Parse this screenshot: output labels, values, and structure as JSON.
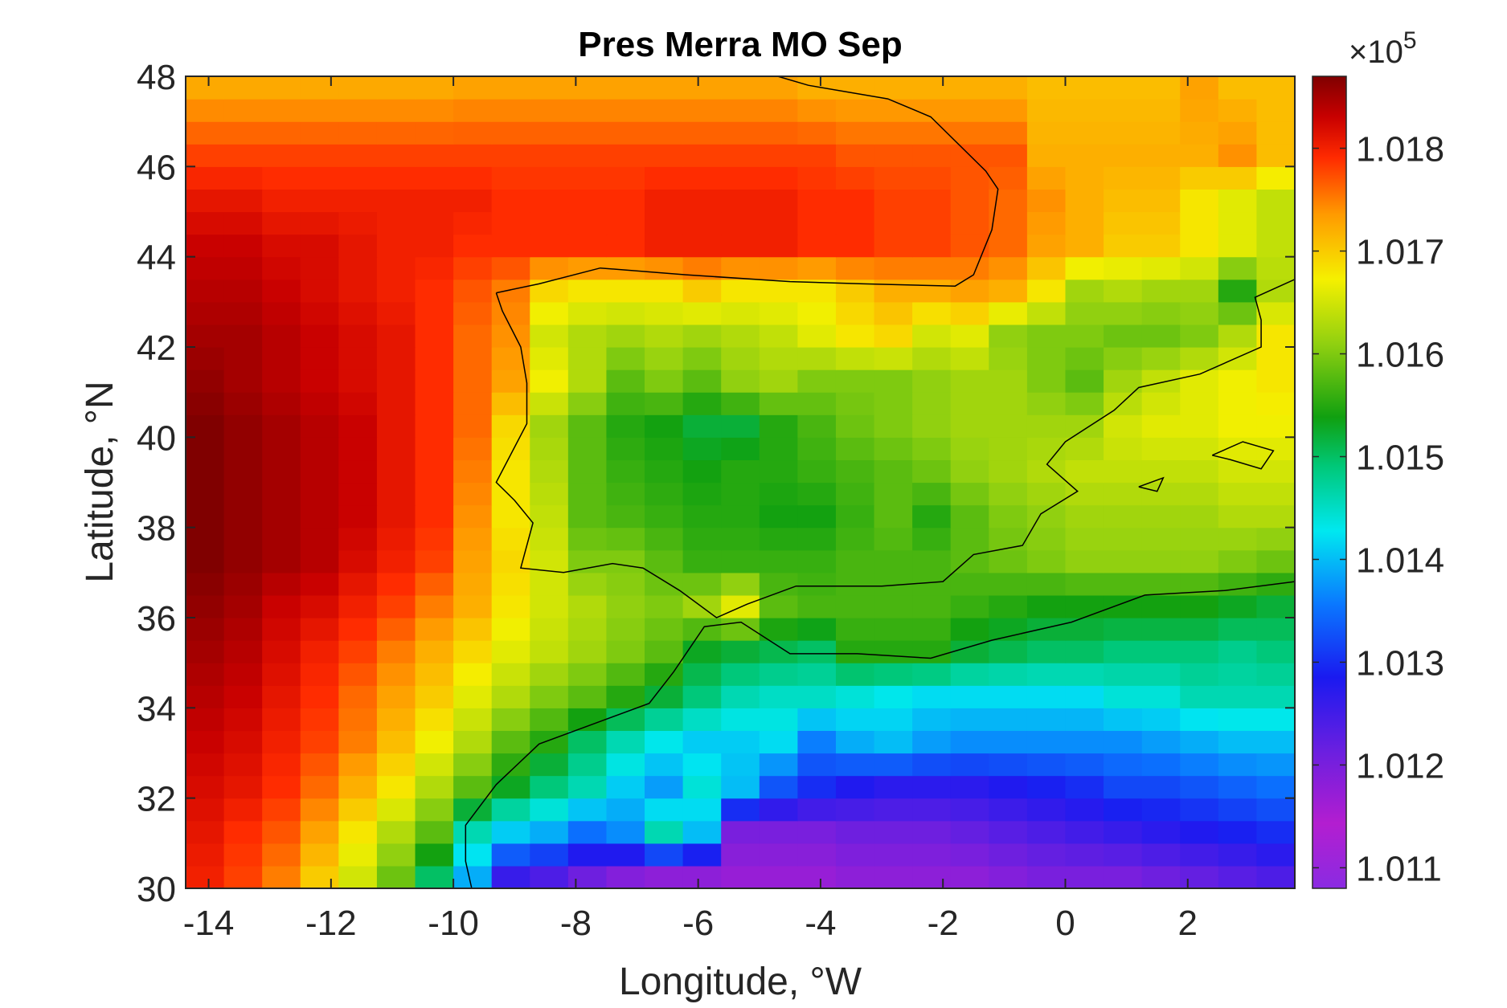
{
  "chart_data": {
    "type": "heatmap",
    "title": "Pres Merra MO Sep",
    "xlabel": "Longitude, °W",
    "ylabel": "Latitude, °N",
    "xlim": [
      -14.375,
      3.75
    ],
    "ylim": [
      30,
      48
    ],
    "x_ticks": [
      -14,
      -12,
      -10,
      -8,
      -6,
      -4,
      -2,
      0,
      2
    ],
    "x_tick_labels": [
      "-14",
      "-12",
      "-10",
      "-8",
      "-6",
      "-4",
      "-2",
      "0",
      "2"
    ],
    "y_ticks": [
      30,
      32,
      34,
      36,
      38,
      40,
      42,
      44,
      46,
      48
    ],
    "y_tick_labels": [
      "30",
      "32",
      "34",
      "36",
      "38",
      "40",
      "42",
      "44",
      "46",
      "48"
    ],
    "colorbar": {
      "multiplier_label": "×10",
      "multiplier_exponent": "5",
      "range": [
        1.0108,
        1.0187
      ],
      "ticks": [
        1.011,
        1.012,
        1.013,
        1.014,
        1.015,
        1.016,
        1.017,
        1.018
      ],
      "tick_labels": [
        "1.011",
        "1.012",
        "1.013",
        "1.014",
        "1.015",
        "1.016",
        "1.017",
        "1.018"
      ]
    },
    "colormap_stops": [
      [
        0.0,
        "#8a2be2"
      ],
      [
        0.08,
        "#b31ed0"
      ],
      [
        0.17,
        "#6a1fe0"
      ],
      [
        0.26,
        "#1a1af0"
      ],
      [
        0.35,
        "#0a78ff"
      ],
      [
        0.44,
        "#00e8f0"
      ],
      [
        0.52,
        "#00c878"
      ],
      [
        0.58,
        "#10a010"
      ],
      [
        0.67,
        "#90d010"
      ],
      [
        0.75,
        "#f5f000"
      ],
      [
        0.83,
        "#ff9a00"
      ],
      [
        0.9,
        "#ff2a00"
      ],
      [
        0.95,
        "#c80000"
      ],
      [
        1.0,
        "#800000"
      ]
    ],
    "grid": false,
    "description_value_units": "Pa / 1e5",
    "lon_centers": [
      -14.0625,
      -13.4375,
      -12.8125,
      -12.1875,
      -11.5625,
      -10.9375,
      -10.3125,
      -9.6875,
      -9.0625,
      -8.4375,
      -7.8125,
      -7.1875,
      -6.5625,
      -5.9375,
      -5.3125,
      -4.6875,
      -4.0625,
      -3.4375,
      -2.8125,
      -2.1875,
      -1.5625,
      -0.9375,
      -0.3125,
      0.3125,
      0.9375,
      1.5625,
      2.1875,
      2.8125,
      3.4375
    ],
    "lat_centers": [
      30.25,
      30.75,
      31.25,
      31.75,
      32.25,
      32.75,
      33.25,
      33.75,
      34.25,
      34.75,
      35.25,
      35.75,
      36.25,
      36.75,
      37.25,
      37.75,
      38.25,
      38.75,
      39.25,
      39.75,
      40.25,
      40.75,
      41.25,
      41.75,
      42.25,
      42.75,
      43.25,
      43.75,
      44.25,
      44.75,
      45.25,
      45.75,
      46.25,
      46.75,
      47.25,
      47.75
    ],
    "anchor_rows": [
      {
        "lat": 47.75,
        "values": [
          1.01725,
          1.01725,
          1.01725,
          1.01725,
          1.01725,
          1.01725,
          1.01725,
          1.0173,
          1.0173,
          1.0173,
          1.0173,
          1.0173,
          1.0173,
          1.0173,
          1.0173,
          1.0173,
          1.0172,
          1.0172,
          1.0172,
          1.0172,
          1.0172,
          1.0172,
          1.0171,
          1.0171,
          1.0171,
          1.0171,
          1.0173,
          1.0171,
          1.0171
        ]
      },
      {
        "lat": 46.25,
        "values": [
          1.0178,
          1.0178,
          1.0178,
          1.0178,
          1.0178,
          1.0178,
          1.0178,
          1.0178,
          1.0178,
          1.0178,
          1.0178,
          1.0178,
          1.0178,
          1.0178,
          1.0178,
          1.0178,
          1.0178,
          1.0177,
          1.0177,
          1.0177,
          1.0177,
          1.0177,
          1.0172,
          1.0172,
          1.0172,
          1.0172,
          1.0172,
          1.0174,
          1.0171
        ]
      },
      {
        "lat": 45.25,
        "values": [
          1.0181,
          1.0181,
          1.018,
          1.018,
          1.018,
          1.018,
          1.018,
          1.018,
          1.0179,
          1.0179,
          1.0179,
          1.0179,
          1.018,
          1.018,
          1.018,
          1.018,
          1.0179,
          1.0179,
          1.0178,
          1.0178,
          1.0177,
          1.0176,
          1.0174,
          1.0172,
          1.0171,
          1.0171,
          1.0168,
          1.0166,
          1.0164
        ]
      },
      {
        "lat": 44.25,
        "values": [
          1.0183,
          1.0183,
          1.0182,
          1.0182,
          1.0181,
          1.018,
          1.018,
          1.0179,
          1.0179,
          1.0179,
          1.0179,
          1.0179,
          1.018,
          1.018,
          1.018,
          1.018,
          1.0179,
          1.0179,
          1.0178,
          1.0178,
          1.0177,
          1.0176,
          1.0173,
          1.0172,
          1.017,
          1.017,
          1.0168,
          1.0166,
          1.0164
        ]
      },
      {
        "lat": 43.25,
        "values": [
          1.0184,
          1.0184,
          1.0183,
          1.0182,
          1.0181,
          1.018,
          1.0179,
          1.0177,
          1.0175,
          1.0169,
          1.0168,
          1.0168,
          1.0168,
          1.017,
          1.0168,
          1.0168,
          1.0168,
          1.017,
          1.0172,
          1.0172,
          1.0173,
          1.0172,
          1.0168,
          1.0162,
          1.0163,
          1.0162,
          1.0162,
          1.0155,
          1.0163
        ]
      },
      {
        "lat": 42.25,
        "values": [
          1.0185,
          1.0185,
          1.0184,
          1.0183,
          1.0182,
          1.0181,
          1.0179,
          1.0176,
          1.0174,
          1.0165,
          1.0163,
          1.0162,
          1.0163,
          1.0162,
          1.0163,
          1.0164,
          1.0166,
          1.0168,
          1.0169,
          1.0165,
          1.0166,
          1.0161,
          1.016,
          1.016,
          1.0159,
          1.0159,
          1.016,
          1.0163,
          1.0168
        ]
      },
      {
        "lat": 41.25,
        "values": [
          1.0186,
          1.0185,
          1.0184,
          1.0183,
          1.0182,
          1.0181,
          1.0179,
          1.0176,
          1.0173,
          1.0167,
          1.0163,
          1.0158,
          1.016,
          1.0158,
          1.0161,
          1.0162,
          1.016,
          1.016,
          1.016,
          1.0161,
          1.0162,
          1.0162,
          1.016,
          1.0158,
          1.0162,
          1.0164,
          1.0166,
          1.0167,
          1.0168
        ]
      },
      {
        "lat": 40.25,
        "values": [
          1.0187,
          1.0186,
          1.0185,
          1.0184,
          1.0183,
          1.0181,
          1.0179,
          1.0176,
          1.0169,
          1.0162,
          1.0158,
          1.0155,
          1.0154,
          1.0152,
          1.0152,
          1.0155,
          1.0157,
          1.0159,
          1.016,
          1.0161,
          1.0162,
          1.0162,
          1.0162,
          1.0162,
          1.0165,
          1.0166,
          1.0166,
          1.0167,
          1.0167
        ]
      },
      {
        "lat": 39.25,
        "values": [
          1.0187,
          1.0186,
          1.0185,
          1.0184,
          1.0183,
          1.0181,
          1.0179,
          1.0175,
          1.0168,
          1.0163,
          1.0158,
          1.0156,
          1.0155,
          1.0154,
          1.0155,
          1.0155,
          1.0156,
          1.0157,
          1.0158,
          1.0159,
          1.0161,
          1.0162,
          1.0163,
          1.0164,
          1.0164,
          1.0164,
          1.0164,
          1.0165,
          1.0165
        ]
      },
      {
        "lat": 38.25,
        "values": [
          1.0187,
          1.0186,
          1.0185,
          1.0184,
          1.0183,
          1.0181,
          1.0179,
          1.0174,
          1.0168,
          1.0164,
          1.0158,
          1.0157,
          1.0156,
          1.0155,
          1.0155,
          1.0154,
          1.0154,
          1.0156,
          1.0158,
          1.0155,
          1.0158,
          1.016,
          1.0161,
          1.0162,
          1.0162,
          1.0162,
          1.0162,
          1.0163,
          1.0163
        ]
      },
      {
        "lat": 37.25,
        "values": [
          1.0187,
          1.0186,
          1.0185,
          1.0184,
          1.0182,
          1.018,
          1.0178,
          1.0173,
          1.0169,
          1.0165,
          1.016,
          1.016,
          1.0158,
          1.0156,
          1.0156,
          1.0156,
          1.0156,
          1.0157,
          1.0157,
          1.0157,
          1.0158,
          1.0159,
          1.016,
          1.0161,
          1.0161,
          1.0161,
          1.0161,
          1.016,
          1.0159
        ]
      },
      {
        "lat": 36.25,
        "values": [
          1.0186,
          1.0185,
          1.0183,
          1.0182,
          1.018,
          1.0178,
          1.0175,
          1.0172,
          1.0168,
          1.0165,
          1.0163,
          1.0161,
          1.016,
          1.0162,
          1.0166,
          1.0158,
          1.0157,
          1.0157,
          1.0157,
          1.0157,
          1.0156,
          1.0155,
          1.0154,
          1.0154,
          1.0154,
          1.0154,
          1.0154,
          1.0153,
          1.0152
        ]
      },
      {
        "lat": 35.25,
        "values": [
          1.0185,
          1.0184,
          1.0182,
          1.018,
          1.0178,
          1.0175,
          1.0172,
          1.0169,
          1.0166,
          1.0164,
          1.0162,
          1.016,
          1.0158,
          1.0153,
          1.0152,
          1.0151,
          1.015,
          1.0155,
          1.0155,
          1.0155,
          1.0152,
          1.0151,
          1.015,
          1.015,
          1.0149,
          1.0149,
          1.0149,
          1.0148,
          1.0149
        ]
      },
      {
        "lat": 34.25,
        "values": [
          1.0184,
          1.0183,
          1.0181,
          1.0179,
          1.0176,
          1.0173,
          1.017,
          1.0166,
          1.0163,
          1.016,
          1.0158,
          1.0155,
          1.0152,
          1.0149,
          1.0146,
          1.0145,
          1.0145,
          1.0144,
          1.0143,
          1.0142,
          1.0142,
          1.0142,
          1.0142,
          1.0142,
          1.0144,
          1.0144,
          1.0146,
          1.0146,
          1.0146
        ]
      },
      {
        "lat": 33.25,
        "values": [
          1.0183,
          1.0182,
          1.018,
          1.0178,
          1.0175,
          1.0171,
          1.0167,
          1.0163,
          1.0158,
          1.0155,
          1.015,
          1.0146,
          1.0143,
          1.0141,
          1.0141,
          1.0142,
          1.0136,
          1.0139,
          1.014,
          1.0138,
          1.0137,
          1.0137,
          1.0137,
          1.0137,
          1.0137,
          1.0138,
          1.0139,
          1.014,
          1.014
        ]
      },
      {
        "lat": 32.25,
        "values": [
          1.0182,
          1.0181,
          1.0179,
          1.0176,
          1.0172,
          1.0168,
          1.0163,
          1.0158,
          1.0153,
          1.0149,
          1.0146,
          1.0141,
          1.0138,
          1.0144,
          1.014,
          1.0133,
          1.013,
          1.0128,
          1.0127,
          1.0127,
          1.0127,
          1.0128,
          1.0129,
          1.013,
          1.0132,
          1.0132,
          1.0133,
          1.0134,
          1.0135
        ]
      },
      {
        "lat": 31.25,
        "values": [
          1.0181,
          1.0179,
          1.0177,
          1.0173,
          1.0168,
          1.0163,
          1.0158,
          1.0146,
          1.0141,
          1.0139,
          1.0135,
          1.0137,
          1.0146,
          1.014,
          1.012,
          1.012,
          1.012,
          1.0121,
          1.0121,
          1.0121,
          1.0122,
          1.0123,
          1.0124,
          1.0125,
          1.0126,
          1.0127,
          1.0128,
          1.0129,
          1.013
        ]
      },
      {
        "lat": 30.25,
        "values": [
          1.018,
          1.0178,
          1.0175,
          1.017,
          1.0165,
          1.0159,
          1.015,
          1.0139,
          1.0126,
          1.0124,
          1.0121,
          1.0119,
          1.0118,
          1.0118,
          1.0117,
          1.0117,
          1.0117,
          1.0118,
          1.0118,
          1.0118,
          1.0118,
          1.0119,
          1.012,
          1.012,
          1.012,
          1.0121,
          1.0122,
          1.0123,
          1.0124
        ]
      }
    ]
  }
}
